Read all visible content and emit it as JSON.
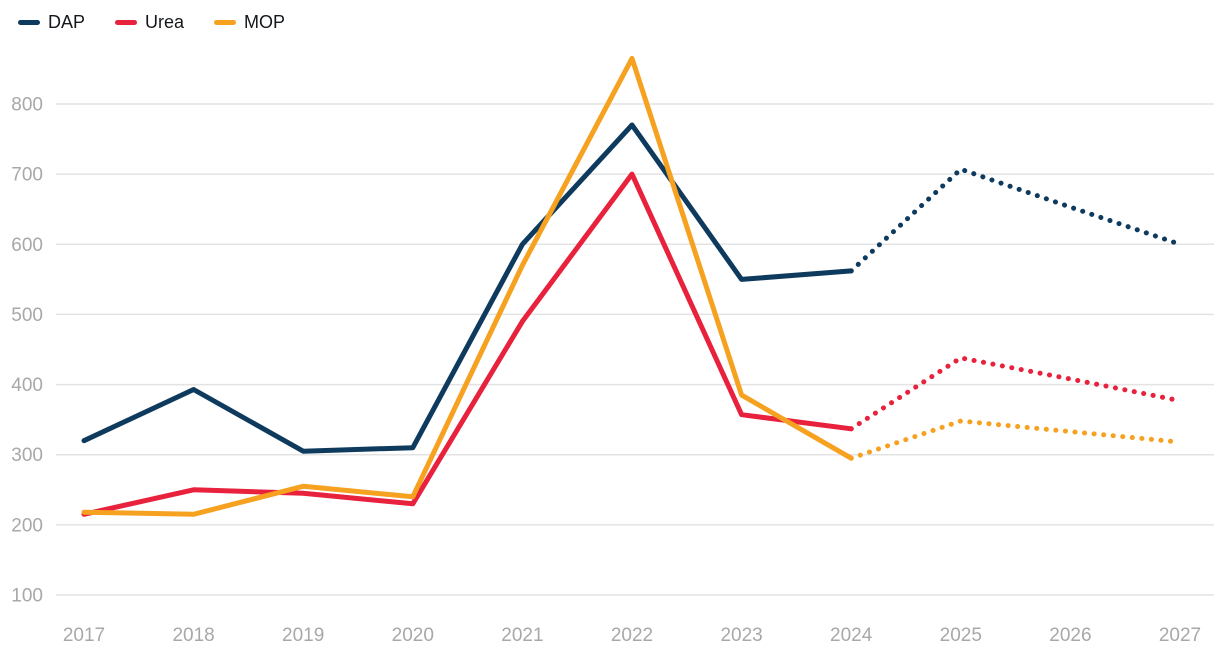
{
  "chart_data": {
    "type": "line",
    "title": "",
    "xlabel": "",
    "ylabel": "",
    "x": [
      2017,
      2018,
      2019,
      2020,
      2021,
      2022,
      2023,
      2024,
      2025,
      2026,
      2027
    ],
    "y_ticks": [
      100,
      200,
      300,
      400,
      500,
      600,
      700,
      800
    ],
    "ylim": [
      100,
      800
    ],
    "grid": true,
    "legend_position": "top-left",
    "line_style_note": "solid through 2024, dotted forecast 2024-2027",
    "series": [
      {
        "name": "DAP",
        "color": "#0e3a5e",
        "values": [
          320,
          393,
          305,
          310,
          600,
          770,
          550,
          562,
          707,
          653,
          600
        ],
        "forecast_start_index": 7
      },
      {
        "name": "Urea",
        "color": "#e8213d",
        "values": [
          215,
          250,
          245,
          230,
          490,
          700,
          357,
          337,
          438,
          408,
          377
        ],
        "forecast_start_index": 7
      },
      {
        "name": "MOP",
        "color": "#f6a120",
        "values": [
          218,
          215,
          255,
          240,
          570,
          865,
          385,
          295,
          348,
          333,
          318
        ],
        "forecast_start_index": 7
      }
    ]
  },
  "colors": {
    "background": "#ffffff",
    "grid": "#e3e3e3",
    "axis_label": "#a8a8a8",
    "legend_text": "#14181c"
  }
}
